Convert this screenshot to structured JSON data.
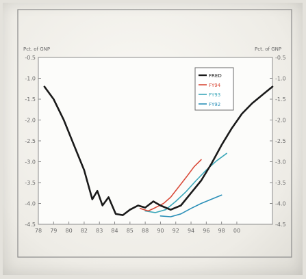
{
  "chart_data": {
    "type": "line",
    "title": "",
    "xlabel": "",
    "ylabel_left": "Pct. of GNP",
    "ylabel_right": "Pct. of GNP",
    "xlim": [
      78,
      101
    ],
    "ylim": [
      -4.5,
      -0.5
    ],
    "x_ticks": [
      "78",
      "79",
      "80",
      "82",
      "83",
      "84",
      "85",
      "88",
      "90",
      "92",
      "94",
      "96",
      "98",
      "00"
    ],
    "x_tick_values": [
      78,
      79.5,
      81,
      82.5,
      84,
      85.5,
      87,
      88.5,
      90,
      91.5,
      93,
      94.5,
      96,
      97.5
    ],
    "y_ticks": [
      "-0.5",
      "-1.0",
      "-1.5",
      "-2.0",
      "-2.5",
      "-3.0",
      "-3.5",
      "-4.0",
      "-4.5"
    ],
    "y_tick_values": [
      -0.5,
      -1.0,
      -1.5,
      -2.0,
      -2.5,
      -3.0,
      -3.5,
      -4.0,
      -4.5
    ],
    "grid": false,
    "legend_position": "top-right",
    "series": [
      {
        "name": "FRED",
        "color": "#1a1a1a",
        "x": [
          78.6,
          79.5,
          80.5,
          81.5,
          82.5,
          83.3,
          83.8,
          84.3,
          84.9,
          85.6,
          86.3,
          87,
          87.8,
          88.5,
          89.3,
          90,
          91,
          92,
          93,
          94,
          95,
          96,
          97,
          98,
          99,
          100,
          101
        ],
        "values": [
          -1.2,
          -1.5,
          -2.0,
          -2.6,
          -3.2,
          -3.9,
          -3.7,
          -4.05,
          -3.85,
          -4.25,
          -4.28,
          -4.15,
          -4.05,
          -4.1,
          -3.95,
          -4.05,
          -4.15,
          -4.05,
          -3.75,
          -3.45,
          -3.05,
          -2.6,
          -2.2,
          -1.85,
          -1.6,
          -1.4,
          -1.2
        ]
      },
      {
        "name": "FY94",
        "color": "#d94b3a",
        "x": [
          88,
          88.8,
          89.5,
          90.3,
          91,
          91.8,
          92.6,
          93.3,
          94
        ],
        "values": [
          -4.12,
          -4.18,
          -4.1,
          -4.0,
          -3.85,
          -3.6,
          -3.35,
          -3.12,
          -2.95
        ]
      },
      {
        "name": "FY93",
        "color": "#3ba7b9",
        "x": [
          88.5,
          89.5,
          90.5,
          91.5,
          92.5,
          93.5,
          94.5,
          95.5,
          96.5
        ],
        "values": [
          -4.18,
          -4.22,
          -4.15,
          -3.95,
          -3.72,
          -3.45,
          -3.2,
          -2.98,
          -2.8
        ]
      },
      {
        "name": "FY92",
        "color": "#2a8fb8",
        "x": [
          90,
          91,
          92,
          93,
          94,
          95,
          96
        ],
        "values": [
          -4.3,
          -4.32,
          -4.25,
          -4.12,
          -4.0,
          -3.9,
          -3.8
        ]
      }
    ]
  }
}
